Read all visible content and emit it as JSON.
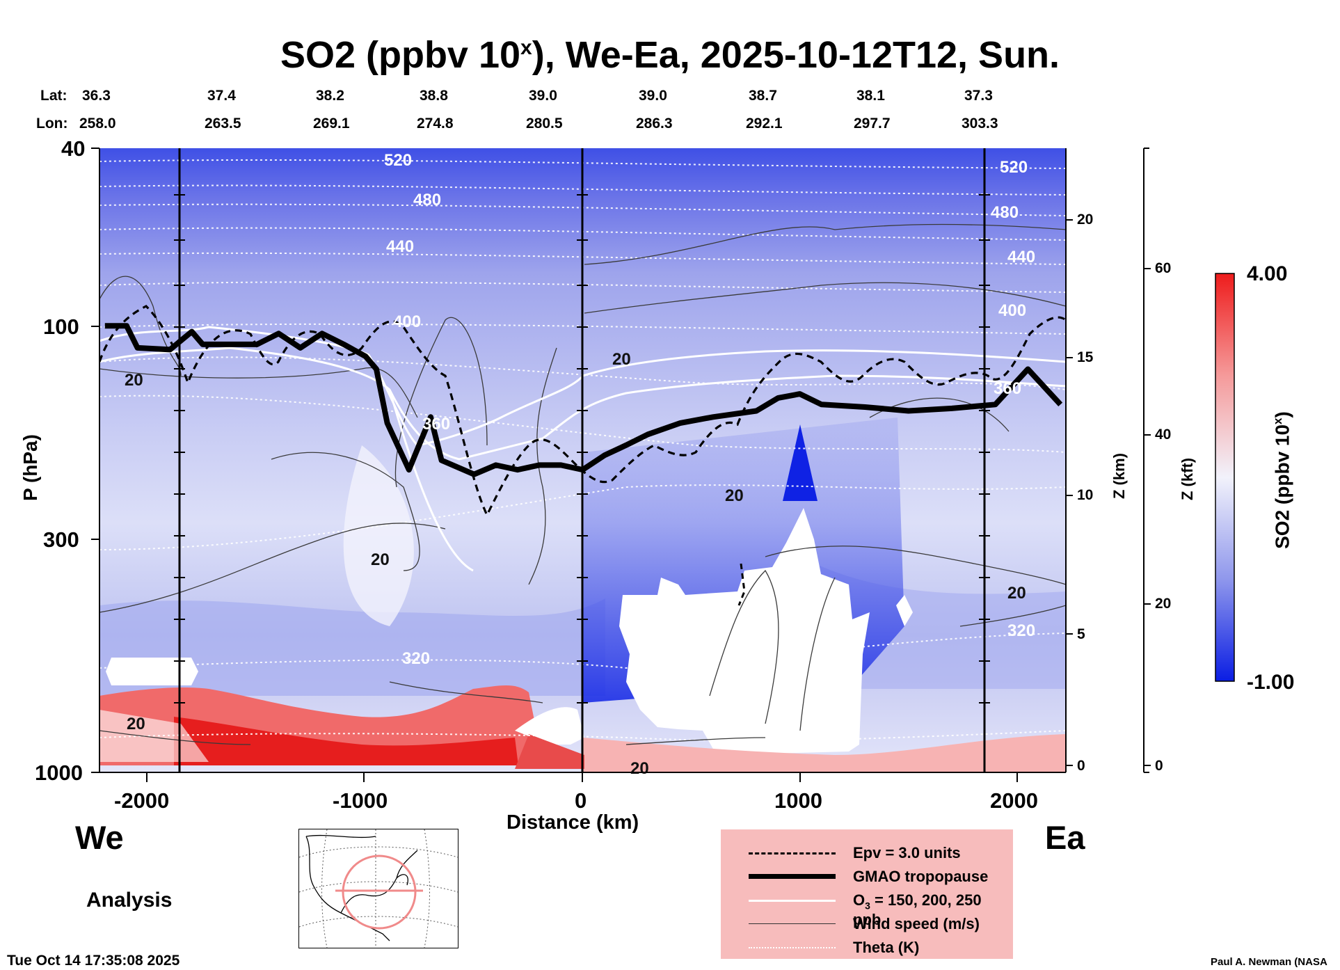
{
  "header": {
    "title_main": "SO2 (ppbv 10",
    "title_exp": "x",
    "title_rest": "), We-Ea, 2025-10-12T12, Sun.",
    "lat_label": "Lat:",
    "lon_label": "Lon:",
    "lats": [
      "36.3",
      "37.4",
      "38.2",
      "38.8",
      "39.0",
      "39.0",
      "38.7",
      "38.1",
      "37.3"
    ],
    "lons": [
      "258.0",
      "263.5",
      "269.1",
      "274.8",
      "280.5",
      "286.3",
      "292.1",
      "297.7",
      "303.3"
    ]
  },
  "chart_data": {
    "type": "heatmap",
    "title": "SO2 (ppbv 10^x), We-Ea, 2025-10-12T12, Sun.",
    "xlabel": "Distance (km)",
    "ylabel": "P (hPa)",
    "xlim": [
      -2225,
      2225
    ],
    "ylim": [
      1000,
      40
    ],
    "x_ticks": [
      -2000,
      -1000,
      0,
      1000,
      2000
    ],
    "x_tick_labels": [
      "-2000",
      "-1000",
      "0",
      "1000",
      "2000"
    ],
    "y_ticks": [
      40,
      100,
      300,
      1000
    ],
    "y_tick_labels": [
      "40",
      "100",
      "300",
      "1000"
    ],
    "z_km_label": "Z (km)",
    "z_km_ticks": [
      0,
      5,
      10,
      15,
      20
    ],
    "z_km_tick_labels": [
      "0",
      "5",
      "10",
      "15",
      "20"
    ],
    "z_kft_label": "Z (kft)",
    "z_kft_ticks": [
      0,
      20,
      40,
      60
    ],
    "z_kft_tick_labels": [
      "0",
      "20",
      "40",
      "60"
    ],
    "colorbar": {
      "label": "SO2 (ppbv 10^x)",
      "label_main": "SO2 (ppbv 10",
      "label_exp": "x",
      "label_end": ")",
      "min": -1.0,
      "max": 4.0,
      "min_label": "-1.00",
      "max_label": "4.00"
    },
    "theta_contour_labels": [
      "520",
      "480",
      "440",
      "400",
      "360",
      "320",
      "520",
      "480",
      "440",
      "400",
      "320",
      "360"
    ],
    "wind_contour_labels": [
      "20",
      "20",
      "20",
      "20",
      "20",
      "20",
      "20",
      "20"
    ],
    "west_label": "We",
    "east_label": "Ea",
    "tropopause_curve": [
      {
        "x": -2200,
        "p": 100
      },
      {
        "x": -2100,
        "p": 100
      },
      {
        "x": -2050,
        "p": 112
      },
      {
        "x": -1900,
        "p": 113
      },
      {
        "x": -1800,
        "p": 103
      },
      {
        "x": -1750,
        "p": 110
      },
      {
        "x": -1500,
        "p": 110
      },
      {
        "x": -1400,
        "p": 104
      },
      {
        "x": -1300,
        "p": 112
      },
      {
        "x": -1200,
        "p": 104
      },
      {
        "x": -1100,
        "p": 110
      },
      {
        "x": -1000,
        "p": 117
      },
      {
        "x": -950,
        "p": 125
      },
      {
        "x": -900,
        "p": 165
      },
      {
        "x": -800,
        "p": 210
      },
      {
        "x": -700,
        "p": 160
      },
      {
        "x": -650,
        "p": 200
      },
      {
        "x": -500,
        "p": 215
      },
      {
        "x": -400,
        "p": 205
      },
      {
        "x": -300,
        "p": 210
      },
      {
        "x": -200,
        "p": 205
      },
      {
        "x": -100,
        "p": 205
      },
      {
        "x": 0,
        "p": 210
      },
      {
        "x": 100,
        "p": 195
      },
      {
        "x": 200,
        "p": 185
      },
      {
        "x": 300,
        "p": 175
      },
      {
        "x": 450,
        "p": 165
      },
      {
        "x": 600,
        "p": 160
      },
      {
        "x": 800,
        "p": 155
      },
      {
        "x": 900,
        "p": 145
      },
      {
        "x": 1000,
        "p": 142
      },
      {
        "x": 1100,
        "p": 150
      },
      {
        "x": 1300,
        "p": 152
      },
      {
        "x": 1500,
        "p": 155
      },
      {
        "x": 1700,
        "p": 153
      },
      {
        "x": 1900,
        "p": 150
      },
      {
        "x": 2050,
        "p": 125
      },
      {
        "x": 2200,
        "p": 150
      }
    ],
    "legend": [
      {
        "style": "dashed",
        "label": "Epv = 3.0 units"
      },
      {
        "style": "thick",
        "label": "GMAO tropopause"
      },
      {
        "style": "white",
        "label_main": "O",
        "label_sub": "3",
        "label_end": " = 150, 200, 250 ppb"
      },
      {
        "style": "thin",
        "label": "Wind speed (m/s)"
      },
      {
        "style": "dotted",
        "label": "Theta (K)"
      }
    ]
  },
  "footer": {
    "analysis_label": "Analysis",
    "timestamp": "Tue Oct 14 17:35:08 2025",
    "credit": "Paul A. Newman (NASA"
  }
}
